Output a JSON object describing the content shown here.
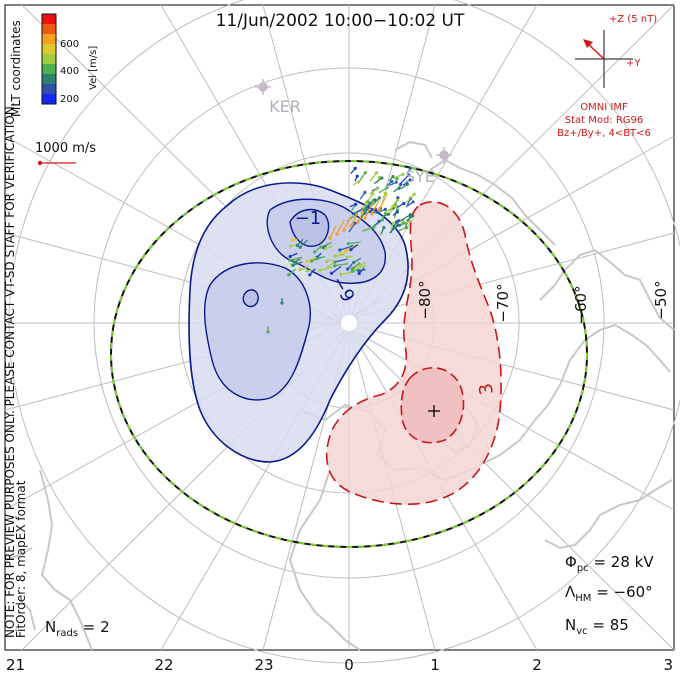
{
  "title": "11/Jun/2002 10:00−10:02 UT",
  "coordinates_label": "MLT coordinates",
  "preview_note": "NOTE: FOR PREVIEW PURPOSES ONLY. PLEASE CONTACT VT-SD STAFF FOR VERIFICATION.",
  "fit_order_note": "FitOrder: 8, mapEX format",
  "colorbar": {
    "label": "Vel [m/s]",
    "ticks": [
      "600",
      "400",
      "200"
    ],
    "colors": [
      "#e81010",
      "#f05a10",
      "#f5a020",
      "#e0c830",
      "#a0d040",
      "#50b050",
      "#2f8070",
      "#3050a8",
      "#1028f0"
    ]
  },
  "velocity_scale": {
    "label": "1000 m/s",
    "color": "#d01818"
  },
  "imf": {
    "z_label": "+Z (5 nT)",
    "y_label": "+Y",
    "title": "OMNI IMF",
    "stat_mod": "Stat Mod: RG96",
    "condition": "Bz+/By+, 4<BT<6",
    "color": "#d01818"
  },
  "radars": [
    {
      "code": "KER"
    },
    {
      "code": "SYE"
    }
  ],
  "latitude_labels": [
    "−80°",
    "−70°",
    "−60°",
    "−50°"
  ],
  "contour_labels": [
    {
      "text": "−1",
      "color": "#0a1a90"
    },
    {
      "text": "−9",
      "color": "#0a1a90"
    },
    {
      "text": "3",
      "color": "#c81818"
    }
  ],
  "mlt_labels": [
    "21",
    "22",
    "23",
    "0",
    "1",
    "2",
    "3"
  ],
  "stats": {
    "phi_pc_symbol": "Φ",
    "phi_pc_sub": "pc",
    "phi_pc_value": " = 28 kV",
    "lambda_hm_symbol": "Λ",
    "lambda_hm_sub": "HM",
    "lambda_hm_value": " = −60°",
    "n_vc_symbol": "N",
    "n_vc_sub": "vc",
    "n_vc_value": " = 85",
    "n_rads_symbol": "N",
    "n_rads_sub": "rads",
    "n_rads_value": " = 2"
  },
  "colors": {
    "negative_cell_fill": "#d7dcf0",
    "negative_contour": "#0a1a90",
    "positive_cell_fill": "#f5d5d5",
    "positive_contour": "#c81818",
    "coastline": "#c8c8c8",
    "grid": "#bdbdbd",
    "hmb_dash_a": "#111111",
    "hmb_dash_b": "#7acc30"
  }
}
